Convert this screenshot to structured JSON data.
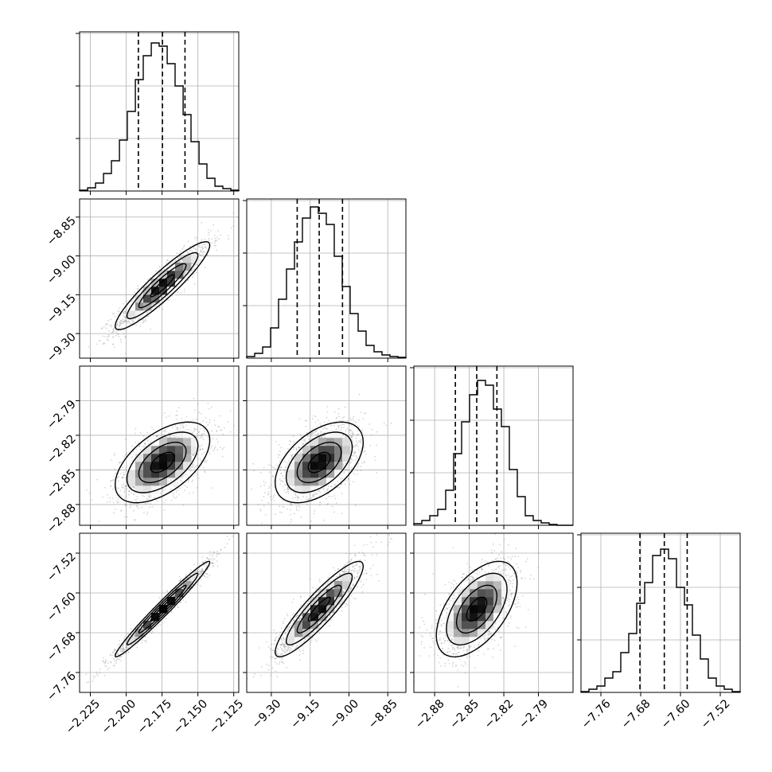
{
  "chart_data": {
    "type": "corner",
    "n_parameters": 4,
    "grid": true,
    "colors": {
      "line": "#000000",
      "grid": "#b0b0b0",
      "samples": "#888888",
      "background": "#ffffff"
    },
    "parameters": [
      {
        "range": [
          -2.2325,
          -2.1215
        ],
        "ticks": [
          -2.225,
          -2.2,
          -2.175,
          -2.15,
          -2.125
        ],
        "tick_labels": [
          "−2.225",
          "−2.200",
          "−2.175",
          "−2.150",
          "−2.125"
        ],
        "quantiles": [
          -2.1915,
          -2.1747,
          -2.159
        ],
        "median": -2.1747
      },
      {
        "range": [
          -9.395,
          -8.78
        ],
        "ticks": [
          -9.3,
          -9.15,
          -9.0,
          -8.85
        ],
        "tick_labels": [
          "−9.30",
          "−9.15",
          "−9.00",
          "−8.85"
        ],
        "quantiles": [
          -9.2,
          -9.115,
          -9.025
        ],
        "median": -9.115
      },
      {
        "range": [
          -2.898,
          -2.76
        ],
        "ticks": [
          -2.88,
          -2.85,
          -2.82,
          -2.79
        ],
        "tick_labels": [
          "−2.88",
          "−2.85",
          "−2.82",
          "−2.79"
        ],
        "quantiles": [
          -2.862,
          -2.8435,
          -2.826
        ],
        "median": -2.8435
      },
      {
        "range": [
          -7.8,
          -7.48
        ],
        "ticks": [
          -7.76,
          -7.68,
          -7.6,
          -7.52
        ],
        "tick_labels": [
          "−7.76",
          "−7.68",
          "−7.60",
          "−7.52"
        ],
        "quantiles": [
          -7.6815,
          -7.6325,
          -7.5865
        ],
        "median": -7.6325
      }
    ],
    "histograms": [
      {
        "param": 0,
        "bin_edges": [
          -2.2325,
          -2.2269,
          -2.2214,
          -2.2158,
          -2.2103,
          -2.2047,
          -2.1992,
          -2.1936,
          -2.1881,
          -2.1825,
          -2.177,
          -2.1714,
          -2.1659,
          -2.1603,
          -2.1548,
          -2.1492,
          -2.1437,
          -2.1381,
          -2.1326,
          -2.127,
          -2.1215
        ],
        "counts": [
          0.5,
          2,
          5,
          11,
          19,
          32,
          50,
          70,
          85,
          93,
          91,
          80,
          66,
          48,
          31,
          17,
          8,
          3,
          1.5,
          0.5
        ],
        "ylim": [
          0,
          100
        ]
      },
      {
        "param": 1,
        "bin_edges": [
          -9.395,
          -9.3643,
          -9.3335,
          -9.3028,
          -9.272,
          -9.2413,
          -9.2105,
          -9.1798,
          -9.149,
          -9.1183,
          -9.0875,
          -9.0568,
          -9.026,
          -8.9953,
          -8.9645,
          -8.9338,
          -8.903,
          -8.8723,
          -8.8415,
          -8.8108,
          -8.78
        ],
        "counts": [
          1,
          3,
          7,
          19,
          37,
          56,
          73,
          88,
          95,
          91,
          84,
          64,
          45,
          28,
          17,
          8,
          4,
          2,
          1,
          0.5
        ],
        "ylim": [
          0,
          100
        ]
      },
      {
        "param": 2,
        "bin_edges": [
          -2.898,
          -2.8911,
          -2.8842,
          -2.8773,
          -2.8704,
          -2.8635,
          -2.8566,
          -2.8497,
          -2.8428,
          -2.8359,
          -2.829,
          -2.8221,
          -2.8152,
          -2.8083,
          -2.8014,
          -2.7945,
          -2.7876,
          -2.7807,
          -2.7738,
          -2.7669,
          -2.76
        ],
        "counts": [
          1,
          3,
          6,
          10,
          22,
          45,
          65,
          82,
          91,
          88,
          73,
          62,
          35,
          18,
          6,
          3,
          1.5,
          0.5,
          0,
          0
        ],
        "ylim": [
          0,
          100
        ]
      },
      {
        "param": 3,
        "bin_edges": [
          -7.8,
          -7.784,
          -7.768,
          -7.752,
          -7.736,
          -7.72,
          -7.704,
          -7.688,
          -7.672,
          -7.656,
          -7.64,
          -7.624,
          -7.608,
          -7.592,
          -7.576,
          -7.56,
          -7.544,
          -7.528,
          -7.512,
          -7.496,
          -7.48
        ],
        "counts": [
          0.5,
          2,
          4,
          9,
          13,
          25,
          37,
          56,
          69,
          86,
          90,
          84,
          66,
          55,
          36,
          21,
          9,
          4,
          2,
          0.5
        ],
        "ylim": [
          0,
          100
        ]
      }
    ],
    "scatter_panels": [
      {
        "row": 1,
        "col": 0,
        "mean": [
          -2.1747,
          -9.115
        ],
        "sd": [
          0.0165,
          0.085
        ],
        "rho": 0.92
      },
      {
        "row": 2,
        "col": 0,
        "mean": [
          -2.1747,
          -2.8435
        ],
        "sd": [
          0.0165,
          0.0175
        ],
        "rho": 0.55
      },
      {
        "row": 2,
        "col": 1,
        "mean": [
          -9.115,
          -2.8435
        ],
        "sd": [
          0.085,
          0.0175
        ],
        "rho": 0.5
      },
      {
        "row": 3,
        "col": 0,
        "mean": [
          -2.1747,
          -7.6325
        ],
        "sd": [
          0.0165,
          0.048
        ],
        "rho": 0.98
      },
      {
        "row": 3,
        "col": 1,
        "mean": [
          -9.115,
          -7.6325
        ],
        "sd": [
          0.085,
          0.048
        ],
        "rho": 0.9
      },
      {
        "row": 3,
        "col": 2,
        "mean": [
          -2.8435,
          -7.6325
        ],
        "sd": [
          0.0175,
          0.048
        ],
        "rho": 0.55
      }
    ],
    "contour_levels_sigma": [
      0.5,
      1.0,
      1.5,
      2.0
    ]
  }
}
